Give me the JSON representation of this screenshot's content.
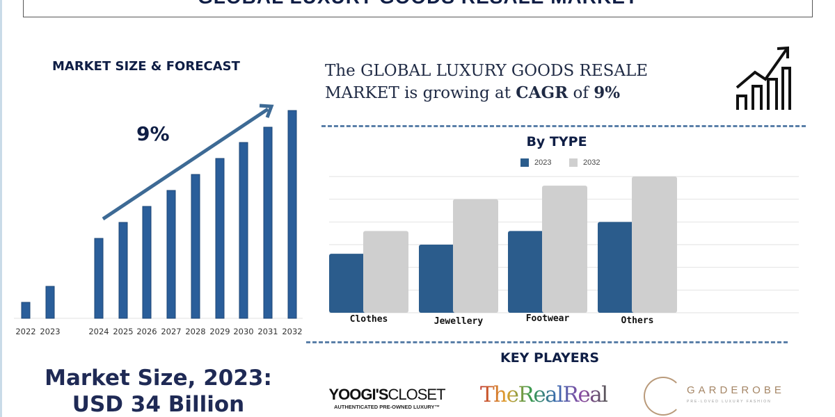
{
  "title": "GLOBAL LUXURY GOODS RESALE MARKET",
  "market_section": {
    "heading": "MARKET SIZE & FORECAST",
    "growth_label": "9%",
    "market_size_line1": "Market Size, 2023:",
    "market_size_line2": "USD 34 Billion"
  },
  "cagr_text": {
    "part1": "The GLOBAL LUXURY GOODS RESALE",
    "part2": "MARKET is growing at ",
    "cagr": "CAGR",
    "of": " of ",
    "value": "9%"
  },
  "icons": [
    "growth-chart-icon"
  ],
  "type_section": {
    "heading": "By TYPE"
  },
  "key_players": {
    "heading": "KEY PLAYERS",
    "logos": [
      {
        "name": "YOOGI'SCLOSET",
        "bold": "YOOGI'S",
        "light": "CLOSET",
        "tagline": "AUTHENTICATED PRE-OWNED LUXURY™"
      },
      {
        "name": "TheRealReal"
      },
      {
        "name": "GARDEROBE",
        "tagline": "PRE-LOVED LUXURY FASHION"
      }
    ]
  },
  "chart_data": [
    {
      "type": "bar",
      "title": "MARKET SIZE & FORECAST",
      "categories": [
        "2022",
        "2023",
        "2024",
        "2025",
        "2026",
        "2027",
        "2028",
        "2029",
        "2030",
        "2031",
        "2032"
      ],
      "values": [
        23,
        46,
        115,
        138,
        161,
        184,
        207,
        230,
        253,
        275,
        299
      ],
      "annotation": "9%",
      "color": "#2a5e9a",
      "grid": false
    },
    {
      "type": "bar",
      "title": "By TYPE",
      "categories": [
        "Clothes",
        "Jewellery",
        "Footwear",
        "Others"
      ],
      "series": [
        {
          "name": "2023",
          "values": [
            2.6,
            3.0,
            3.6,
            4.0
          ],
          "color": "#2b5c8c"
        },
        {
          "name": "2032",
          "values": [
            3.6,
            5.0,
            5.6,
            6.0
          ],
          "color": "#cfcfcf"
        }
      ],
      "ylim": [
        0,
        6
      ],
      "grid": true,
      "legend": "top-center"
    }
  ]
}
